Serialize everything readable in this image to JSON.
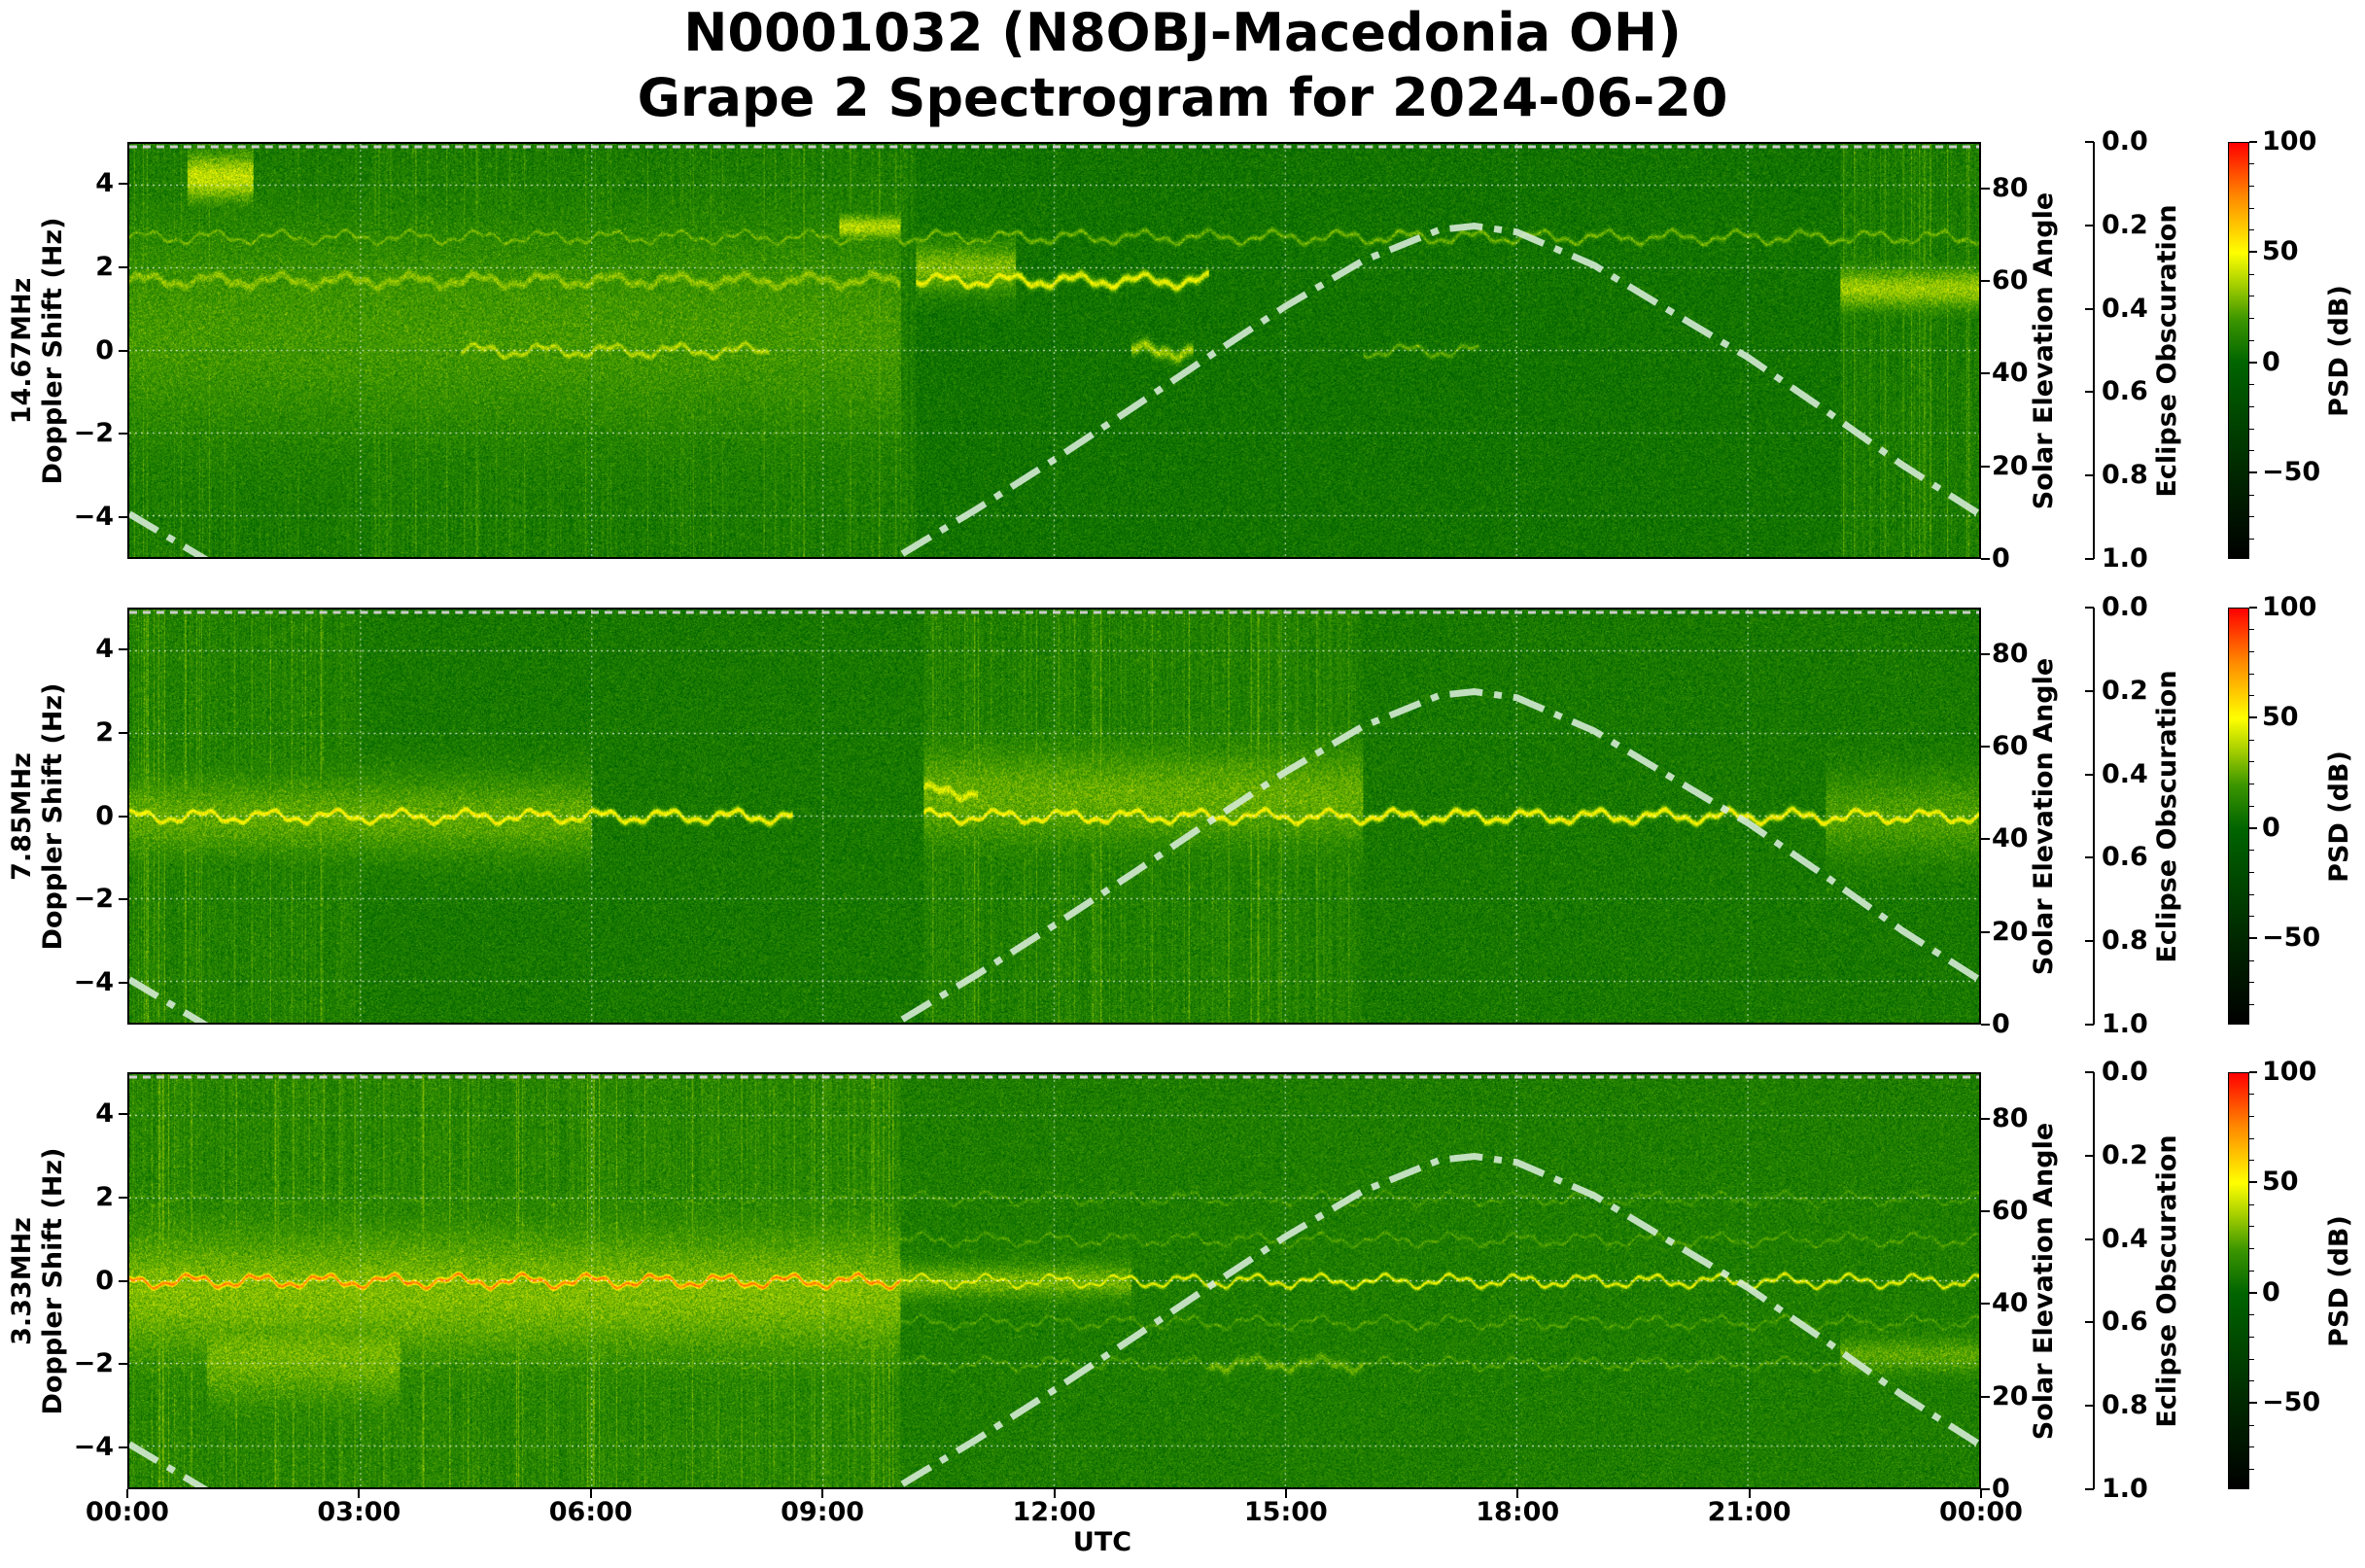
{
  "title": {
    "line1": "N0001032 (N8OBJ-Macedonia OH)",
    "line2": "Grape 2 Spectrogram for 2024-06-20"
  },
  "chart_data": {
    "type": "heatmap",
    "xlabel": "UTC",
    "x_ticks": [
      "00:00",
      "03:00",
      "06:00",
      "09:00",
      "12:00",
      "15:00",
      "18:00",
      "21:00",
      "00:00"
    ],
    "xlim_hours": [
      0,
      24
    ],
    "grid": true,
    "colormap": {
      "label": "PSD (dB)",
      "range": [
        -89,
        100
      ],
      "ticks": [
        "100",
        "50",
        "0",
        "−50"
      ],
      "tick_values": [
        100,
        50,
        0,
        -50
      ],
      "stops": [
        {
          "value": -89,
          "color": "#000000"
        },
        {
          "value": -50,
          "color": "#002800"
        },
        {
          "value": 0,
          "color": "#006400"
        },
        {
          "value": 20,
          "color": "#3c9600"
        },
        {
          "value": 35,
          "color": "#a0cc00"
        },
        {
          "value": 50,
          "color": "#ffff00"
        },
        {
          "value": 75,
          "color": "#ff8c00"
        },
        {
          "value": 100,
          "color": "#ff0000"
        }
      ]
    },
    "left_axis": {
      "ticks": [
        "−4",
        "−2",
        "0",
        "2",
        "4"
      ],
      "tick_values": [
        -4,
        -2,
        0,
        2,
        4
      ],
      "ylim": [
        -5,
        5
      ]
    },
    "right_axis": {
      "label": "Solar Elevation Angle",
      "ticks": [
        "0",
        "20",
        "40",
        "60",
        "80"
      ],
      "tick_values": [
        0,
        20,
        40,
        60,
        80
      ],
      "ylim": [
        0,
        90
      ]
    },
    "eclipse_axis": {
      "label": "Eclipse Obscuration",
      "ticks": [
        "0.0",
        "0.2",
        "0.4",
        "0.6",
        "0.8",
        "1.0"
      ],
      "tick_values": [
        0,
        0.2,
        0.4,
        0.6,
        0.8,
        1.0
      ],
      "ylim": [
        1.0,
        0.0
      ]
    },
    "solar_elevation": {
      "line_style": "dash-dot",
      "color": "#d4ead4",
      "hours": [
        0,
        1,
        2,
        3,
        4,
        5,
        6,
        7,
        8,
        9,
        10,
        11,
        12,
        13,
        14,
        15,
        16,
        17,
        17.45,
        18,
        19,
        20,
        21,
        22,
        23,
        24
      ],
      "degrees": [
        9.4,
        -0.6,
        -9.4,
        -16.8,
        -22.2,
        -25.0,
        -24.8,
        -21.8,
        -16.2,
        -8.6,
        0.4,
        10.5,
        21.2,
        32.3,
        43.6,
        54.6,
        64.5,
        71.3,
        72.1,
        70.8,
        63.6,
        53.5,
        43.5,
        32.0,
        20.1,
        9.4
      ]
    },
    "panels": [
      {
        "frequency": "14.67MHz",
        "ylabel": "Doppler Shift (Hz)",
        "background_psd": 6,
        "streaky_hours": [
          [
            0,
            10.2
          ],
          [
            22.2,
            24
          ]
        ],
        "features": [
          {
            "t0": 0.75,
            "t1": 1.6,
            "f": 4.2,
            "width": 0.6,
            "psd": 40
          },
          {
            "t0": 0,
            "t1": 10,
            "f": 1.7,
            "width": 0.15,
            "psd": 32
          },
          {
            "t0": 0,
            "t1": 10,
            "f": 0.5,
            "width": 3.0,
            "psd": 20
          },
          {
            "t0": 9.2,
            "t1": 10,
            "f": 3.0,
            "width": 0.3,
            "psd": 38
          },
          {
            "t0": 10.2,
            "t1": 14,
            "f": 1.7,
            "width": 0.1,
            "psd": 48
          },
          {
            "t0": 10.2,
            "t1": 11.5,
            "f": 2.0,
            "width": 0.6,
            "psd": 30
          },
          {
            "t0": 0,
            "t1": 24,
            "f": 2.75,
            "width": 0.06,
            "psd": 28
          },
          {
            "t0": 4.3,
            "t1": 8.3,
            "f": 0.0,
            "width": 0.1,
            "psd": 38
          },
          {
            "t0": 13.0,
            "t1": 13.8,
            "f": 0.0,
            "width": 0.15,
            "psd": 35
          },
          {
            "t0": 16.0,
            "t1": 17.5,
            "f": 0.0,
            "width": 0.06,
            "psd": 25
          },
          {
            "t0": 22.2,
            "t1": 24,
            "f": 1.5,
            "width": 0.5,
            "psd": 34
          }
        ]
      },
      {
        "frequency": "7.85MHz",
        "ylabel": "Doppler Shift (Hz)",
        "background_psd": 8,
        "streaky_hours": [
          [
            0,
            3
          ],
          [
            10.3,
            16
          ]
        ],
        "features": [
          {
            "t0": 0,
            "t1": 8.6,
            "f": 0.0,
            "width": 0.08,
            "psd": 52
          },
          {
            "t0": 0,
            "t1": 6,
            "f": 0.0,
            "width": 1.0,
            "psd": 25
          },
          {
            "t0": 10.3,
            "t1": 24,
            "f": 0.0,
            "width": 0.08,
            "psd": 52
          },
          {
            "t0": 10.3,
            "t1": 16,
            "f": 0.5,
            "width": 1.2,
            "psd": 26
          },
          {
            "t0": 10.3,
            "t1": 11,
            "f": 0.6,
            "width": 0.15,
            "psd": 45
          },
          {
            "t0": 22,
            "t1": 24,
            "f": 0.0,
            "width": 1.0,
            "psd": 22
          }
        ]
      },
      {
        "frequency": "3.33MHz",
        "ylabel": "Doppler Shift (Hz)",
        "background_psd": 10,
        "streaky_hours": [
          [
            0,
            10
          ]
        ],
        "features": [
          {
            "t0": 0,
            "t1": 10,
            "f": 0.0,
            "width": 0.07,
            "psd": 78
          },
          {
            "t0": 0,
            "t1": 10,
            "f": -0.3,
            "width": 1.6,
            "psd": 30
          },
          {
            "t0": 1,
            "t1": 3.5,
            "f": -1.8,
            "width": 1.2,
            "psd": 28
          },
          {
            "t0": 10,
            "t1": 24,
            "f": 0.0,
            "width": 0.05,
            "psd": 48
          },
          {
            "t0": 10,
            "t1": 13,
            "f": 0.0,
            "width": 0.4,
            "psd": 28
          },
          {
            "t0": 0,
            "t1": 24,
            "f": 1.0,
            "width": 0.04,
            "psd": 22
          },
          {
            "t0": 0,
            "t1": 24,
            "f": -1.0,
            "width": 0.04,
            "psd": 22
          },
          {
            "t0": 0,
            "t1": 24,
            "f": 2.0,
            "width": 0.04,
            "psd": 20
          },
          {
            "t0": 0,
            "t1": 24,
            "f": -2.0,
            "width": 0.04,
            "psd": 22
          },
          {
            "t0": 14,
            "t1": 16,
            "f": -2.0,
            "width": 0.1,
            "psd": 26
          },
          {
            "t0": 22.2,
            "t1": 24,
            "f": -1.8,
            "width": 0.4,
            "psd": 24
          }
        ]
      }
    ]
  }
}
